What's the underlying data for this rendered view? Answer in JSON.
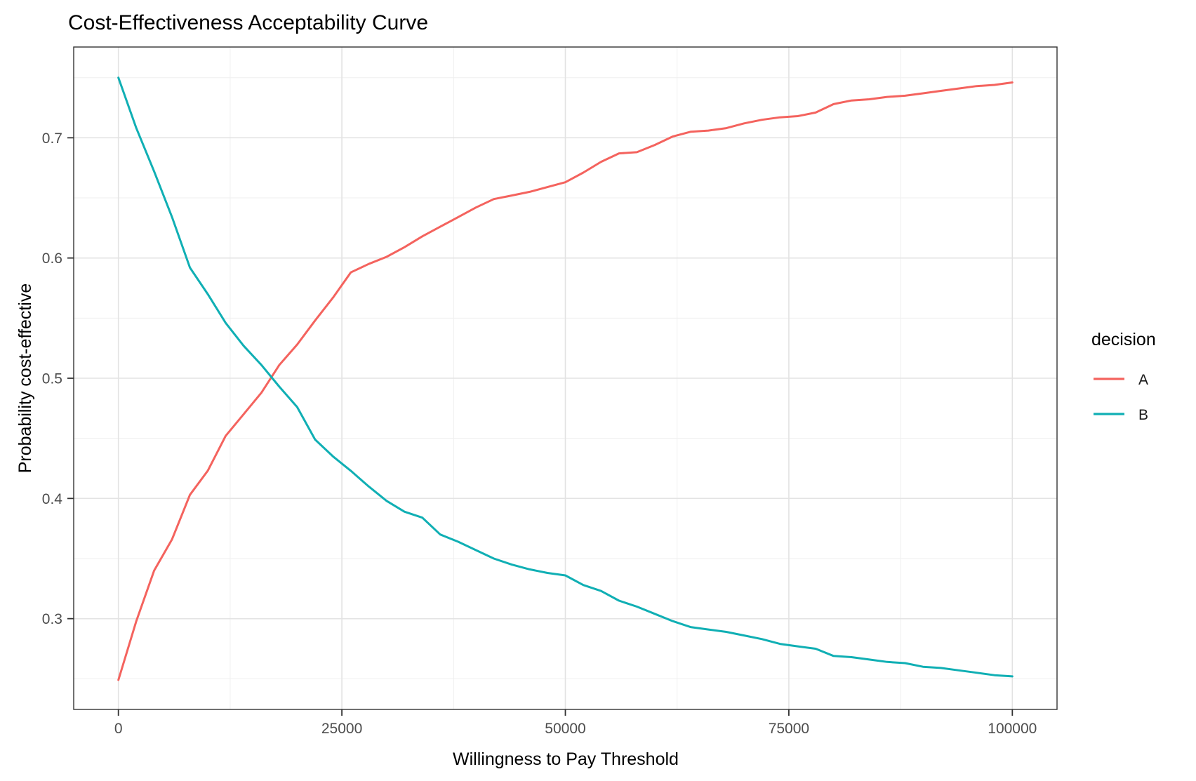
{
  "title": "Cost-Effectiveness Acceptability Curve",
  "colors": {
    "series_a": "#F4635E",
    "series_b": "#10AFB4",
    "grid_major": "#E3E3E3",
    "grid_minor": "#EFEFEF",
    "panel_border": "#333333",
    "tick_mark": "#333333",
    "tick_text": "#4d4d4d"
  },
  "chart_data": {
    "type": "line",
    "title": "Cost-Effectiveness Acceptability Curve",
    "xlabel": "Willingness to Pay Threshold",
    "ylabel": "Probability cost-effective",
    "xlim": [
      -5000,
      105000
    ],
    "ylim": [
      0.2245,
      0.7755
    ],
    "grid": true,
    "x_ticks": [
      0,
      25000,
      50000,
      75000,
      100000
    ],
    "x_tick_labels": [
      "0",
      "25000",
      "50000",
      "75000",
      "100000"
    ],
    "x_minor_ticks": [
      12500,
      37500,
      62500,
      87500
    ],
    "y_ticks": [
      0.3,
      0.4,
      0.5,
      0.6,
      0.7
    ],
    "y_tick_labels": [
      "0.3",
      "0.4",
      "0.5",
      "0.6",
      "0.7"
    ],
    "y_minor_ticks": [
      0.25,
      0.35,
      0.45,
      0.55,
      0.65,
      0.75
    ],
    "legend": {
      "title": "decision",
      "position": "right",
      "entries": [
        {
          "label": "A",
          "color": "#F4635E"
        },
        {
          "label": "B",
          "color": "#10AFB4"
        }
      ]
    },
    "x": [
      0,
      2000,
      4000,
      6000,
      8000,
      10000,
      12000,
      14000,
      16000,
      18000,
      20000,
      22000,
      24000,
      26000,
      28000,
      30000,
      32000,
      34000,
      36000,
      38000,
      40000,
      42000,
      44000,
      46000,
      48000,
      50000,
      52000,
      54000,
      56000,
      58000,
      60000,
      62000,
      64000,
      66000,
      68000,
      70000,
      72000,
      74000,
      76000,
      78000,
      80000,
      82000,
      84000,
      86000,
      88000,
      90000,
      92000,
      94000,
      96000,
      98000,
      100000
    ],
    "series": [
      {
        "name": "A",
        "color": "#F4635E",
        "values": [
          0.249,
          0.298,
          0.34,
          0.366,
          0.403,
          0.423,
          0.452,
          0.47,
          0.488,
          0.511,
          0.528,
          0.548,
          0.567,
          0.588,
          0.595,
          0.601,
          0.609,
          0.618,
          0.626,
          0.634,
          0.642,
          0.649,
          0.652,
          0.655,
          0.659,
          0.663,
          0.671,
          0.68,
          0.687,
          0.688,
          0.694,
          0.701,
          0.705,
          0.706,
          0.708,
          0.712,
          0.715,
          0.717,
          0.718,
          0.721,
          0.728,
          0.731,
          0.732,
          0.734,
          0.735,
          0.737,
          0.739,
          0.741,
          0.743,
          0.744,
          0.746
        ]
      },
      {
        "name": "B",
        "color": "#10AFB4",
        "values": [
          0.75,
          0.708,
          0.672,
          0.634,
          0.592,
          0.57,
          0.546,
          0.527,
          0.511,
          0.493,
          0.476,
          0.449,
          0.435,
          0.423,
          0.41,
          0.398,
          0.389,
          0.384,
          0.37,
          0.364,
          0.357,
          0.35,
          0.345,
          0.341,
          0.338,
          0.336,
          0.328,
          0.323,
          0.315,
          0.31,
          0.304,
          0.298,
          0.293,
          0.291,
          0.289,
          0.286,
          0.283,
          0.279,
          0.277,
          0.275,
          0.269,
          0.268,
          0.266,
          0.264,
          0.263,
          0.26,
          0.259,
          0.257,
          0.255,
          0.253,
          0.252
        ]
      }
    ]
  }
}
